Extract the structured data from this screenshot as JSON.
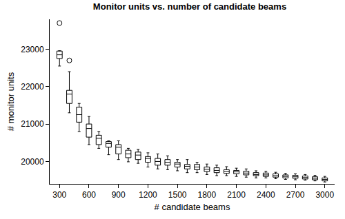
{
  "chart_data": {
    "type": "box",
    "title": "Monitor units vs. number of candidate beams",
    "x_label": "# candidate beams",
    "y_label": "# monitor units",
    "x": [
      300,
      400,
      500,
      600,
      700,
      800,
      900,
      1000,
      1100,
      1200,
      1300,
      1400,
      1500,
      1600,
      1700,
      1800,
      1900,
      2000,
      2100,
      2200,
      2300,
      2400,
      2500,
      2600,
      2700,
      2800,
      2900,
      3000
    ],
    "median": [
      22850,
      21800,
      21250,
      20880,
      20620,
      20480,
      20380,
      20200,
      20170,
      20080,
      20000,
      19980,
      19930,
      19870,
      19850,
      19790,
      19760,
      19730,
      19720,
      19690,
      19650,
      19640,
      19620,
      19600,
      19590,
      19570,
      19550,
      19520
    ],
    "q1": [
      22750,
      21550,
      21050,
      20650,
      20450,
      20380,
      20200,
      20100,
      20050,
      19980,
      19900,
      19900,
      19850,
      19800,
      19780,
      19730,
      19700,
      19680,
      19670,
      19640,
      19620,
      19600,
      19580,
      19560,
      19550,
      19530,
      19510,
      19480
    ],
    "q3": [
      22950,
      21900,
      21450,
      21000,
      20700,
      20530,
      20450,
      20300,
      20250,
      20130,
      20080,
      20050,
      19980,
      19920,
      19920,
      19850,
      19830,
      19780,
      19760,
      19740,
      19700,
      19690,
      19670,
      19640,
      19630,
      19610,
      19590,
      19560
    ],
    "lower": [
      22550,
      21300,
      20800,
      20450,
      20350,
      20180,
      20050,
      19990,
      19950,
      19850,
      19800,
      19780,
      19750,
      19700,
      19700,
      19650,
      19620,
      19620,
      19600,
      19580,
      19560,
      19560,
      19540,
      19520,
      19510,
      19500,
      19480,
      19450
    ],
    "upper": [
      22960,
      22400,
      21550,
      21200,
      20800,
      20550,
      20550,
      20350,
      20320,
      20230,
      20200,
      20150,
      20050,
      20050,
      19980,
      19930,
      19900,
      19860,
      19820,
      19800,
      19750,
      19740,
      19710,
      19680,
      19670,
      19650,
      19630,
      19600
    ],
    "outliers": [
      {
        "x": 300,
        "value": 23700
      },
      {
        "x": 400,
        "value": 22700
      }
    ],
    "color": "#000000",
    "xlim": [
      200,
      3100
    ],
    "xticks": [
      300,
      600,
      900,
      1200,
      1500,
      1800,
      2100,
      2400,
      2700,
      3000
    ],
    "ylim": [
      19400,
      23800
    ],
    "yticks": [
      20000,
      21000,
      22000,
      23000
    ],
    "grid": false
  }
}
